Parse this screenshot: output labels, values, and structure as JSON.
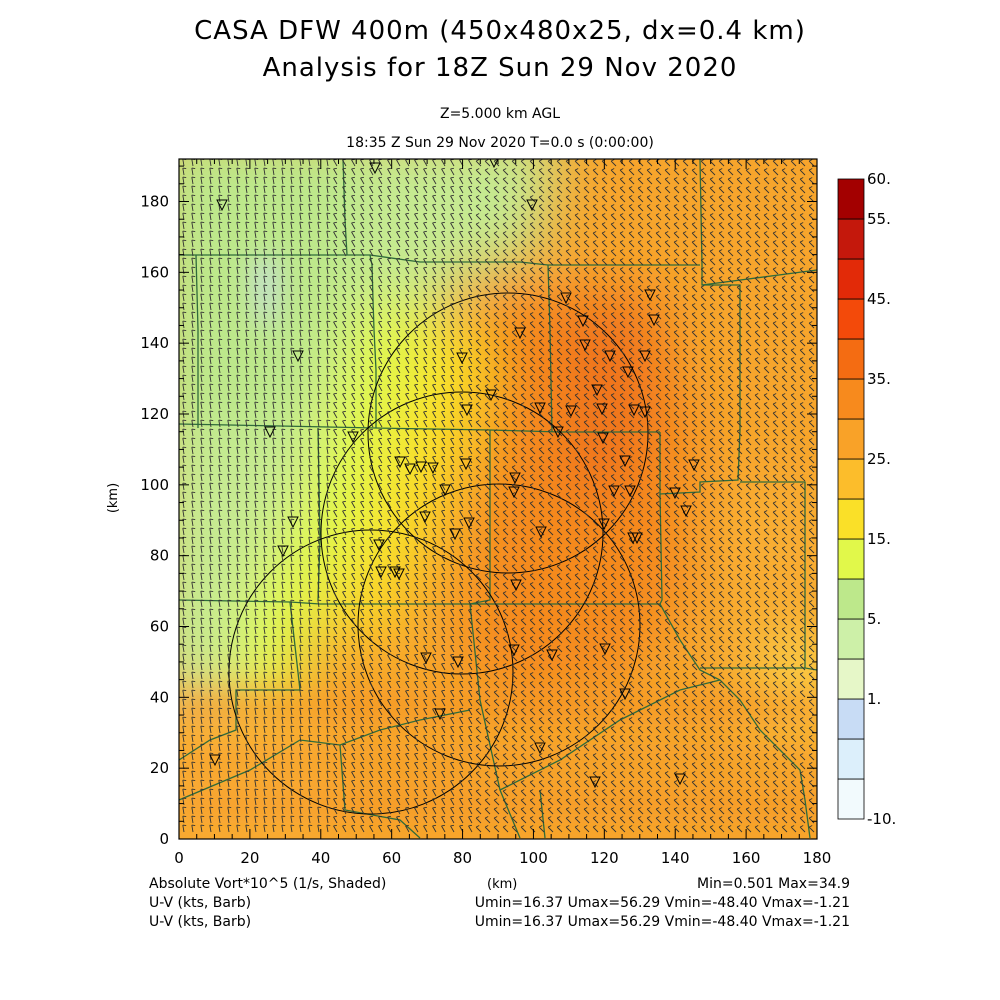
{
  "header": {
    "title_line1": "CASA DFW 400m (450x480x25, dx=0.4 km)",
    "title_line2": "Analysis for 18Z Sun 29 Nov 2020",
    "level": "Z=5.000 km AGL",
    "timestamp": "18:35 Z Sun 29 Nov 2020    T=0.0 s (0:00:00)"
  },
  "axes": {
    "x_unit": "(km)",
    "y_unit": "(km)",
    "x_ticks": [
      "0",
      "20",
      "40",
      "60",
      "80",
      "100",
      "120",
      "140",
      "160",
      "180"
    ],
    "y_ticks": [
      "0",
      "20",
      "40",
      "60",
      "80",
      "100",
      "120",
      "140",
      "160",
      "180"
    ],
    "x_range": [
      0,
      180
    ],
    "y_range": [
      0,
      192
    ]
  },
  "colorbar": {
    "labels": [
      "60.",
      "55.",
      "45.",
      "35.",
      "25.",
      "15.",
      "5.",
      "1.",
      "-10."
    ],
    "colors": [
      "#f2fafd",
      "#dceffb",
      "#c8dcf5",
      "#e6f7c8",
      "#cdf0a8",
      "#bde88b",
      "#e1f84a",
      "#fae028",
      "#fcbd2b",
      "#f9a228",
      "#f78a1d",
      "#f46c12",
      "#f34a0a",
      "#e22a08",
      "#c4180c",
      "#a30000"
    ]
  },
  "footer": {
    "field_label": "Absolute Vort*10^5 (1/s, Shaded)",
    "x_unit_label": "(km)",
    "minmax": "Min=0.501 Max=34.9",
    "wind_label_1": "U-V (kts, Barb)",
    "wind_stats_1": "Umin=16.37  Umax=56.29  Vmin=-48.40  Vmax=-1.21",
    "wind_label_2": "U-V (kts, Barb)",
    "wind_stats_2": "Umin=16.37  Umax=56.29  Vmin=-48.40  Vmax=-1.21"
  },
  "map_colors": {
    "frame": "#000000",
    "county_lines": "#2f6b3a",
    "radar_rings": "#000000",
    "barbs": "#333333"
  }
}
